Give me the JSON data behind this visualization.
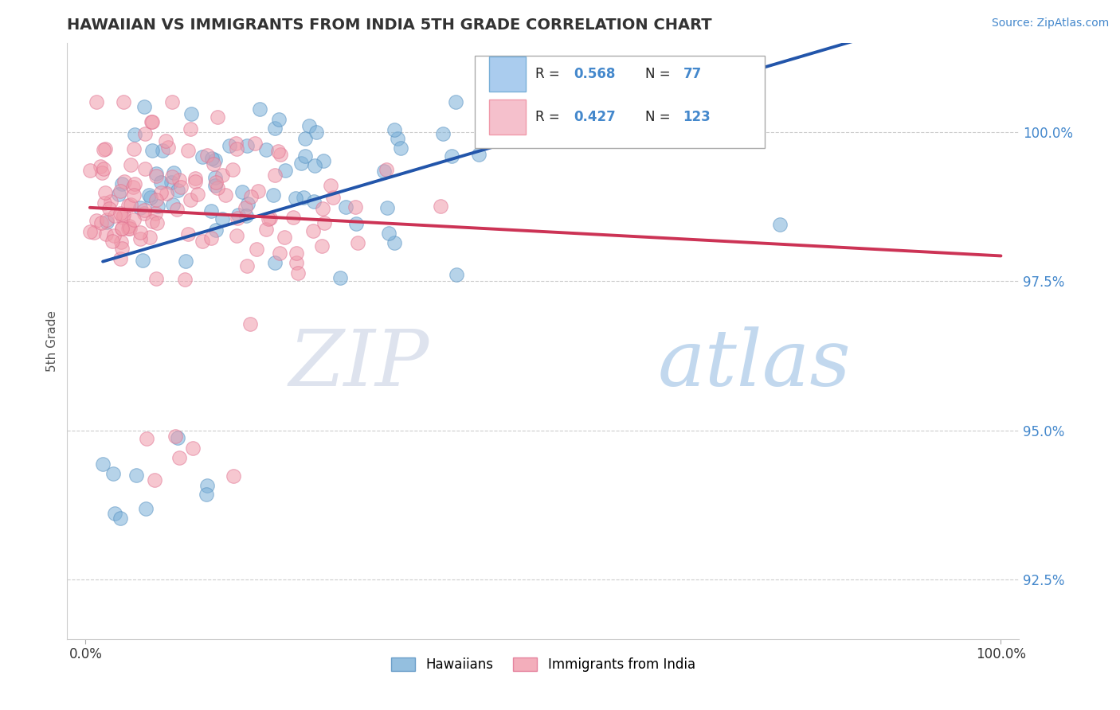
{
  "title": "HAWAIIAN VS IMMIGRANTS FROM INDIA 5TH GRADE CORRELATION CHART",
  "source_text": "Source: ZipAtlas.com",
  "xlabel": "",
  "ylabel": "5th Grade",
  "xlim": [
    -0.02,
    1.02
  ],
  "ylim": [
    91.5,
    101.5
  ],
  "yticks": [
    92.5,
    95.0,
    97.5,
    100.0
  ],
  "ytick_labels": [
    "92.5%",
    "95.0%",
    "97.5%",
    "100.0%"
  ],
  "xticks": [
    0.0,
    1.0
  ],
  "xtick_labels": [
    "0.0%",
    "100.0%"
  ],
  "hawaiian_color": "#7ab0d8",
  "hawaii_edge_color": "#5590c0",
  "india_color": "#f09aaa",
  "india_edge_color": "#e07090",
  "hawaiian_R": 0.568,
  "hawaiian_N": 77,
  "india_R": 0.427,
  "india_N": 123,
  "legend_label_hawaiian": "Hawaiians",
  "legend_label_india": "Immigrants from India",
  "watermark_zip": "ZIP",
  "watermark_atlas": "atlas",
  "background_color": "#ffffff",
  "grid_color": "#cccccc",
  "title_color": "#333333",
  "axis_label_color": "#555555",
  "trendline_hawaii_color": "#2255aa",
  "trendline_india_color": "#cc3355",
  "legend_box_color": "#aaaaaa",
  "yaxis_right_color": "#4488cc",
  "source_color": "#4488cc"
}
